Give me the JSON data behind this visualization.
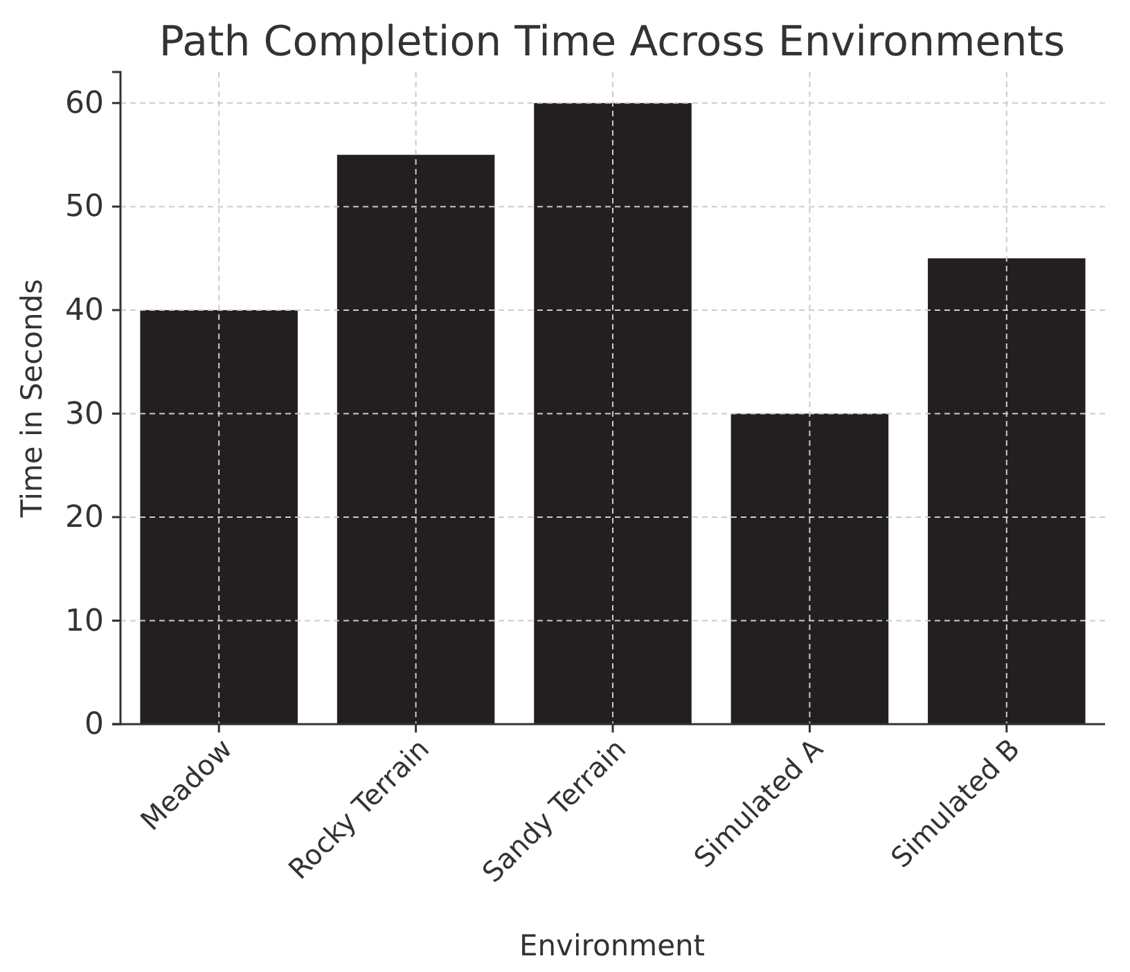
{
  "chart_data": {
    "type": "bar",
    "title": "Path Completion Time Across Environments",
    "xlabel": "Environment",
    "ylabel": "Time in Seconds",
    "categories": [
      "Meadow",
      "Rocky Terrain",
      "Sandy Terrain",
      "Simulated A",
      "Simulated B"
    ],
    "values": [
      40,
      55,
      60,
      30,
      45
    ],
    "color": "#231f20",
    "ylim": [
      0,
      63
    ],
    "yticks": [
      0,
      10,
      20,
      30,
      40,
      50,
      60
    ],
    "grid": true
  }
}
